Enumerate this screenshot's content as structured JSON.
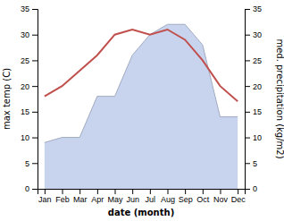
{
  "chart_data": {
    "type": "line",
    "categories": [
      "Jan",
      "Feb",
      "Mar",
      "Apr",
      "May",
      "Jun",
      "Jul",
      "Aug",
      "Sep",
      "Oct",
      "Nov",
      "Dec"
    ],
    "xlabel": "date (month)",
    "ylabel": "max temp (C)",
    "y2label": "med. precipitation (kg/m2)",
    "ylim": [
      0,
      35
    ],
    "yticks": [
      0,
      5,
      10,
      15,
      20,
      25,
      30,
      35
    ],
    "y2lim": [
      0,
      35
    ],
    "y2ticks": [
      0,
      5,
      10,
      15,
      20,
      25,
      30,
      35
    ],
    "grid": false,
    "series": [
      {
        "type": "area",
        "axis": "y2",
        "color": "#c8d4ee",
        "values": [
          9,
          10,
          10,
          18,
          18,
          26,
          30,
          32,
          32,
          28,
          14,
          14
        ]
      },
      {
        "type": "line",
        "color": "#c0504d",
        "values": [
          18,
          20,
          23,
          26,
          30,
          31,
          30,
          31,
          29,
          25,
          20,
          17
        ]
      }
    ]
  }
}
